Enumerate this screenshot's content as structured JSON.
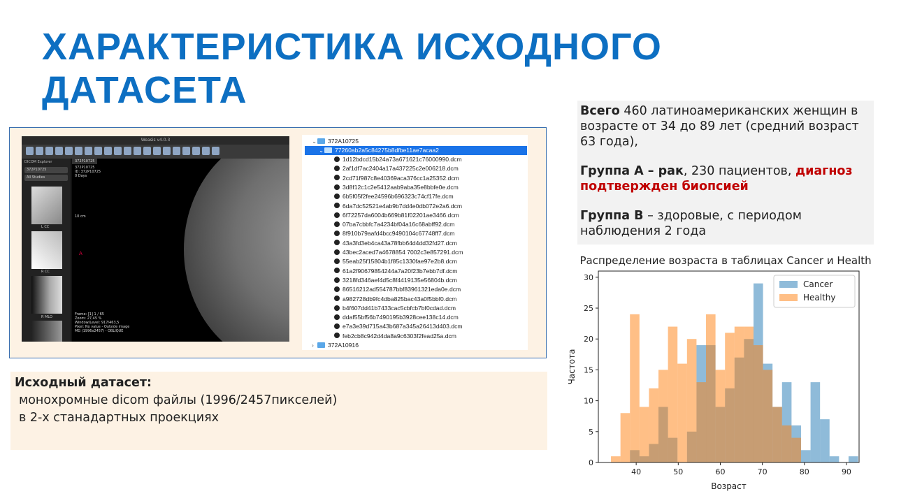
{
  "slide": {
    "title_line1": "ХАРАКТЕРИСТИКА ИСХОДНОГО",
    "title_line2": "ДАТАСЕТА"
  },
  "info": {
    "p1_bold": "Всего",
    "p1_rest": " 460 латиноамериканских женщин в возрасте от 34 до 89 лет (средний возраст 63 года),",
    "p2_bold": "Группа А – рак",
    "p2_mid": ", 230 пациентов, ",
    "p2_red": "диагноз подтвержден биопсией",
    "p3_bold": "Группа В",
    "p3_rest": " – здоровые, с периодом наблюдения 2 года"
  },
  "viewer": {
    "app_title": "Weasis v4.0.3",
    "tab": "372P10725",
    "explorer_label": "DICOM Explorer",
    "patient": "372P10725",
    "studies": "All Studies",
    "patient_info": "372P10725",
    "patient_id": "ID: 372P10725",
    "patient_age": "0 Days",
    "scale": "10 cm",
    "orient_a": "A",
    "orient_r": "R",
    "overlay": [
      "Frame: [1] 1 / 65",
      "Zoom: 27,45 %",
      "Window/Level: 917/463,5",
      "Pixel: No value - Outside image",
      "MG (1996x2457) - OBLIQUE"
    ],
    "thumb_labels": [
      "L CC",
      "R CC",
      "",
      "R MLO"
    ]
  },
  "files": {
    "root": "372A10725",
    "selected_folder": "77260ab2a5c84275b8dfbe11ae7acaa2",
    "items": [
      "1d12bdcd15b24a73a671621c76000990.dcm",
      "2af1df7ac2404a17a437225c2e006218.dcm",
      "2cd71f987c8e40369aca376cc1a25352.dcm",
      "3d8f12c1c2e5412aab9aba35e8bbfe0e.dcm",
      "6b5f05f2fee24596b696323c74cf17fe.dcm",
      "6da7dc52521e4ab9b7dd4e0db072e2a6.dcm",
      "6f72257da6004b669b81f02201ae3466.dcm",
      "07ba7cbbfc7a4234bf04a16c68abff92.dcm",
      "8f910b79aafd4bcc9490104c67748ff7.dcm",
      "43a3fd3eb4ca43a78fbb64d4dd32fd27.dcm",
      "43bec2aced7a4678854 7002c3e857291.dcm",
      "55eab25f15804b1f85c1330fae97e2b8.dcm",
      "61a2f90679854244a7a20f23b7ebb7df.dcm",
      "3218fd346aef4d5c8f4419135e56804b.dcm",
      "86516212ad554787bbf83961321eda0e.dcm",
      "a982728db9fc4dba825bac43a0f5bbf0.dcm",
      "b4f607dd41b7433cac5cbfcb7bf0cdad.dcm",
      "ddaf55bf56b7490195b3928cee138c14.dcm",
      "e7a3e39d715a43b687a345a26413d403.dcm",
      "feb2cb8c942d4da8a9c6303f2fead25a.dcm"
    ],
    "next_folder": "372A10916"
  },
  "dataset": {
    "heading": "Исходный датасет:",
    "line1": "монохромные  dicom файлы (1996/2457пикселей)",
    "line2": "в 2-х станадартных  проекциях"
  },
  "chart_data": {
    "type": "bar",
    "title": "Распределение возраста в таблицах Cancer и Healthy",
    "xlabel": "Возраст",
    "ylabel": "Частота",
    "xlim": [
      31,
      93
    ],
    "ylim": [
      0,
      31
    ],
    "xticks": [
      40,
      50,
      60,
      70,
      80,
      90
    ],
    "yticks": [
      0,
      5,
      10,
      15,
      20,
      25,
      30
    ],
    "legend_position": "top-right",
    "bin_width": 2.26,
    "bin_start": 34,
    "series": [
      {
        "name": "Cancer",
        "color": "#1f77b4",
        "values": [
          0,
          0,
          2,
          1,
          3,
          9,
          4,
          0,
          5,
          19,
          19,
          9,
          12,
          17,
          20,
          29,
          16,
          9,
          13,
          6,
          2,
          13,
          7,
          1,
          0,
          1
        ]
      },
      {
        "name": "Healthy",
        "color": "#ff7f0e",
        "values": [
          1,
          8,
          24,
          9,
          12,
          15,
          22,
          16,
          20,
          13,
          24,
          15,
          21,
          22,
          22,
          19,
          15,
          9,
          6,
          4,
          0,
          0,
          0,
          0,
          0,
          0
        ]
      }
    ]
  }
}
